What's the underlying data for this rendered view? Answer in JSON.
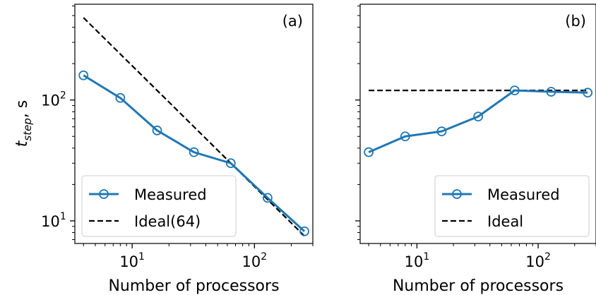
{
  "chart_data": [
    {
      "type": "line",
      "panel_label": "(a)",
      "xlabel": "Number of processors",
      "ylabel_main": "t",
      "ylabel_sub": "step",
      "ylabel_rest": ", s",
      "xscale": "log",
      "yscale": "log",
      "xlim": [
        3.4,
        300
      ],
      "ylim": [
        6.5,
        620
      ],
      "xticks": [
        {
          "value": 10,
          "base": "10",
          "exp": "1"
        },
        {
          "value": 100,
          "base": "10",
          "exp": "2"
        }
      ],
      "yticks": [
        {
          "value": 10,
          "base": "10",
          "exp": "1"
        },
        {
          "value": 100,
          "base": "10",
          "exp": "2"
        }
      ],
      "legend_position": "lower-left",
      "series": [
        {
          "name": "Measured",
          "style": "solid-circle",
          "color": "#1f77b4",
          "x": [
            4,
            8,
            16,
            32,
            64,
            128,
            256
          ],
          "y": [
            160,
            104,
            56,
            37,
            30,
            15.5,
            8.2
          ]
        },
        {
          "name": "Ideal(64)",
          "style": "dashed",
          "color": "#000000",
          "x": [
            4,
            256
          ],
          "y": [
            480,
            7.5
          ]
        }
      ]
    },
    {
      "type": "line",
      "panel_label": "(b)",
      "xlabel": "Number of processors",
      "xscale": "log",
      "yscale": "log",
      "xlim": [
        3.4,
        300
      ],
      "ylim": [
        6.5,
        620
      ],
      "xticks": [
        {
          "value": 10,
          "base": "10",
          "exp": "1"
        },
        {
          "value": 100,
          "base": "10",
          "exp": "2"
        }
      ],
      "yticks": [
        {
          "value": 10
        },
        {
          "value": 100
        }
      ],
      "legend_position": "lower-right",
      "series": [
        {
          "name": "Measured",
          "style": "solid-circle",
          "color": "#1f77b4",
          "x": [
            4,
            8,
            16,
            32,
            64,
            128,
            256
          ],
          "y": [
            37,
            50,
            55,
            73,
            120,
            117,
            115
          ]
        },
        {
          "name": "Ideal",
          "style": "dashed",
          "color": "#000000",
          "x": [
            4,
            256
          ],
          "y": [
            120,
            120
          ]
        }
      ]
    }
  ]
}
